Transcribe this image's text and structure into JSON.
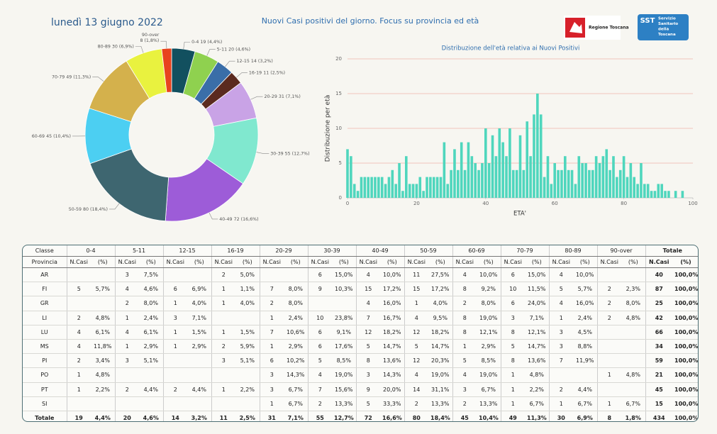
{
  "header": {
    "title": "lunedì 13 giugno 2022",
    "subtitle": "Nuovi Casi positivi del giorno. Focus su provincia ed età",
    "logo_regione": "Regione Toscana",
    "logo_sst": "SST",
    "logo_sst_lines": [
      "Servizio",
      "Sanitario",
      "della",
      "Toscana"
    ]
  },
  "chart_data": [
    {
      "type": "donut",
      "categories": [
        "0-4",
        "5-11",
        "12-15",
        "16-19",
        "20-29",
        "30-39",
        "40-49",
        "50-59",
        "60-69",
        "70-79",
        "80-89",
        "90-over"
      ],
      "values": [
        19,
        20,
        14,
        11,
        31,
        55,
        72,
        80,
        45,
        49,
        30,
        8
      ],
      "value_labels": [
        "19 (4,4%)",
        "20 (4,6%)",
        "14 (3,2%)",
        "11 (2,5%)",
        "31 (7,1%)",
        "55 (12,7%)",
        "72 (16,6%)",
        "80 (18,4%)",
        "45 (10,4%)",
        "49 (11,3%)",
        "30 (6,9%)",
        "8 (1,8%)"
      ],
      "colors": [
        "#12505f",
        "#8fd14f",
        "#3a6ea8",
        "#5b2a1f",
        "#c9a3e6",
        "#80e8cf",
        "#9d5cd8",
        "#3e6670",
        "#4ccff2",
        "#d4b14c",
        "#e9f23f",
        "#e8431e"
      ]
    },
    {
      "type": "bar",
      "title": "Distribuzione dell'età relativa ai Nuovi Positivi",
      "ylabel": "Distribuzione per età",
      "xlabel": "ETA'",
      "x": [
        0,
        1,
        2,
        3,
        4,
        5,
        6,
        7,
        8,
        9,
        10,
        11,
        12,
        13,
        14,
        15,
        16,
        17,
        18,
        19,
        20,
        21,
        22,
        23,
        24,
        25,
        26,
        27,
        28,
        29,
        30,
        31,
        32,
        33,
        34,
        35,
        36,
        37,
        38,
        39,
        40,
        41,
        42,
        43,
        44,
        45,
        46,
        47,
        48,
        49,
        50,
        51,
        52,
        53,
        54,
        55,
        56,
        57,
        58,
        59,
        60,
        61,
        62,
        63,
        64,
        65,
        66,
        67,
        68,
        69,
        70,
        71,
        72,
        73,
        74,
        75,
        76,
        77,
        78,
        79,
        80,
        81,
        82,
        83,
        84,
        85,
        86,
        87,
        88,
        89,
        90,
        91,
        92,
        93,
        94,
        95,
        96,
        97
      ],
      "values": [
        7,
        6,
        2,
        1,
        3,
        3,
        3,
        3,
        3,
        3,
        3,
        2,
        3,
        4,
        2,
        5,
        1,
        6,
        2,
        2,
        2,
        3,
        1,
        3,
        3,
        3,
        3,
        3,
        8,
        2,
        4,
        7,
        4,
        8,
        4,
        8,
        6,
        5,
        4,
        5,
        10,
        5,
        9,
        6,
        10,
        8,
        6,
        10,
        4,
        4,
        9,
        4,
        11,
        6,
        12,
        15,
        12,
        3,
        6,
        2,
        5,
        4,
        4,
        6,
        4,
        4,
        2,
        6,
        5,
        5,
        4,
        4,
        6,
        5,
        6,
        7,
        4,
        6,
        3,
        4,
        6,
        3,
        5,
        3,
        2,
        5,
        2,
        2,
        1,
        1,
        2,
        2,
        1,
        1,
        0,
        1,
        0,
        1
      ],
      "color": "#4fd6bd",
      "grid": true,
      "grid_color": "#f0b3aa",
      "xlim": [
        0,
        100
      ],
      "xticks": [
        0,
        20,
        40,
        60,
        80,
        100
      ],
      "ylim": [
        0,
        20
      ],
      "yticks": [
        0,
        5,
        10,
        15,
        20
      ]
    }
  ],
  "table": {
    "corner": [
      "Classe",
      "Provincia"
    ],
    "groups": [
      "0-4",
      "5-11",
      "12-15",
      "16-19",
      "20-29",
      "30-39",
      "40-49",
      "50-59",
      "60-69",
      "70-79",
      "80-89",
      "90-over",
      "Totale"
    ],
    "subheaders": [
      "N.Casi",
      "(%)"
    ],
    "rows": [
      {
        "provincia": "AR",
        "cells": [
          null,
          null,
          3,
          "7,5%",
          null,
          null,
          2,
          "5,0%",
          null,
          null,
          6,
          "15,0%",
          4,
          "10,0%",
          11,
          "27,5%",
          4,
          "10,0%",
          6,
          "15,0%",
          4,
          "10,0%",
          null,
          null,
          40,
          "100,0%"
        ]
      },
      {
        "provincia": "FI",
        "cells": [
          5,
          "5,7%",
          4,
          "4,6%",
          6,
          "6,9%",
          1,
          "1,1%",
          7,
          "8,0%",
          9,
          "10,3%",
          15,
          "17,2%",
          15,
          "17,2%",
          8,
          "9,2%",
          10,
          "11,5%",
          5,
          "5,7%",
          2,
          "2,3%",
          87,
          "100,0%"
        ]
      },
      {
        "provincia": "GR",
        "cells": [
          null,
          null,
          2,
          "8,0%",
          1,
          "4,0%",
          1,
          "4,0%",
          2,
          "8,0%",
          null,
          null,
          4,
          "16,0%",
          1,
          "4,0%",
          2,
          "8,0%",
          6,
          "24,0%",
          4,
          "16,0%",
          2,
          "8,0%",
          25,
          "100,0%"
        ]
      },
      {
        "provincia": "LI",
        "cells": [
          2,
          "4,8%",
          1,
          "2,4%",
          3,
          "7,1%",
          null,
          null,
          1,
          "2,4%",
          10,
          "23,8%",
          7,
          "16,7%",
          4,
          "9,5%",
          8,
          "19,0%",
          3,
          "7,1%",
          1,
          "2,4%",
          2,
          "4,8%",
          42,
          "100,0%"
        ]
      },
      {
        "provincia": "LU",
        "cells": [
          4,
          "6,1%",
          4,
          "6,1%",
          1,
          "1,5%",
          1,
          "1,5%",
          7,
          "10,6%",
          6,
          "9,1%",
          12,
          "18,2%",
          12,
          "18,2%",
          8,
          "12,1%",
          8,
          "12,1%",
          3,
          "4,5%",
          null,
          null,
          66,
          "100,0%"
        ]
      },
      {
        "provincia": "MS",
        "cells": [
          4,
          "11,8%",
          1,
          "2,9%",
          1,
          "2,9%",
          2,
          "5,9%",
          1,
          "2,9%",
          6,
          "17,6%",
          5,
          "14,7%",
          5,
          "14,7%",
          1,
          "2,9%",
          5,
          "14,7%",
          3,
          "8,8%",
          null,
          null,
          34,
          "100,0%"
        ]
      },
      {
        "provincia": "PI",
        "cells": [
          2,
          "3,4%",
          3,
          "5,1%",
          null,
          null,
          3,
          "5,1%",
          6,
          "10,2%",
          5,
          "8,5%",
          8,
          "13,6%",
          12,
          "20,3%",
          5,
          "8,5%",
          8,
          "13,6%",
          7,
          "11,9%",
          null,
          null,
          59,
          "100,0%"
        ]
      },
      {
        "provincia": "PO",
        "cells": [
          1,
          "4,8%",
          null,
          null,
          null,
          null,
          null,
          null,
          3,
          "14,3%",
          4,
          "19,0%",
          3,
          "14,3%",
          4,
          "19,0%",
          4,
          "19,0%",
          1,
          "4,8%",
          null,
          null,
          1,
          "4,8%",
          21,
          "100,0%"
        ]
      },
      {
        "provincia": "PT",
        "cells": [
          1,
          "2,2%",
          2,
          "4,4%",
          2,
          "4,4%",
          1,
          "2,2%",
          3,
          "6,7%",
          7,
          "15,6%",
          9,
          "20,0%",
          14,
          "31,1%",
          3,
          "6,7%",
          1,
          "2,2%",
          2,
          "4,4%",
          null,
          null,
          45,
          "100,0%"
        ]
      },
      {
        "provincia": "SI",
        "cells": [
          null,
          null,
          null,
          null,
          null,
          null,
          null,
          null,
          1,
          "6,7%",
          2,
          "13,3%",
          5,
          "33,3%",
          2,
          "13,3%",
          2,
          "13,3%",
          1,
          "6,7%",
          1,
          "6,7%",
          1,
          "6,7%",
          15,
          "100,0%"
        ]
      },
      {
        "provincia": "Totale",
        "cells": [
          19,
          "4,4%",
          20,
          "4,6%",
          14,
          "3,2%",
          11,
          "2,5%",
          31,
          "7,1%",
          55,
          "12,7%",
          72,
          "16,6%",
          80,
          "18,4%",
          45,
          "10,4%",
          49,
          "11,3%",
          30,
          "6,9%",
          8,
          "1,8%",
          434,
          "100,0%"
        ]
      }
    ]
  }
}
